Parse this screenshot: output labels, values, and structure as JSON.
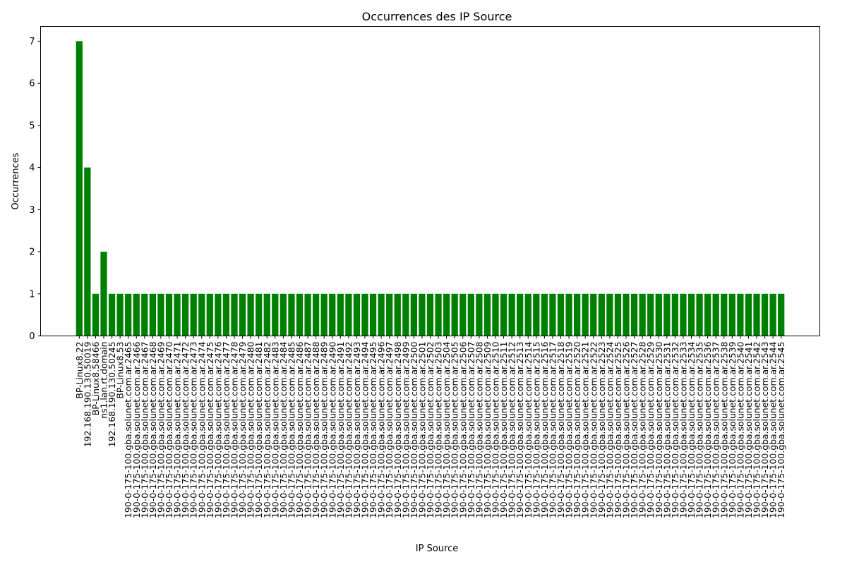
{
  "chart_data": {
    "type": "bar",
    "title": "Occurrences des IP Source",
    "xlabel": "IP Source",
    "ylabel": "Occurrences",
    "ylim": [
      0,
      7.35
    ],
    "yticks": [
      0,
      1,
      2,
      3,
      4,
      5,
      6,
      7
    ],
    "grid": false,
    "bar_color": "#008000",
    "categories": [
      "BP-Linux8.22",
      "192.168.190.130.50019",
      "BP-Linux8.58466",
      "ns1.lan.rt.domain",
      "192.168.190.130.50245",
      "BP-Linux8.53",
      "190-0-175-100.gba.solunet.com.ar.2465",
      "190-0-175-100.gba.solunet.com.ar.2466",
      "190-0-175-100.gba.solunet.com.ar.2467",
      "190-0-175-100.gba.solunet.com.ar.2468",
      "190-0-175-100.gba.solunet.com.ar.2469",
      "190-0-175-100.gba.solunet.com.ar.2470",
      "190-0-175-100.gba.solunet.com.ar.2471",
      "190-0-175-100.gba.solunet.com.ar.2472",
      "190-0-175-100.gba.solunet.com.ar.2473",
      "190-0-175-100.gba.solunet.com.ar.2474",
      "190-0-175-100.gba.solunet.com.ar.2475",
      "190-0-175-100.gba.solunet.com.ar.2476",
      "190-0-175-100.gba.solunet.com.ar.2477",
      "190-0-175-100.gba.solunet.com.ar.2478",
      "190-0-175-100.gba.solunet.com.ar.2479",
      "190-0-175-100.gba.solunet.com.ar.2480",
      "190-0-175-100.gba.solunet.com.ar.2481",
      "190-0-175-100.gba.solunet.com.ar.2482",
      "190-0-175-100.gba.solunet.com.ar.2483",
      "190-0-175-100.gba.solunet.com.ar.2484",
      "190-0-175-100.gba.solunet.com.ar.2485",
      "190-0-175-100.gba.solunet.com.ar.2486",
      "190-0-175-100.gba.solunet.com.ar.2487",
      "190-0-175-100.gba.solunet.com.ar.2488",
      "190-0-175-100.gba.solunet.com.ar.2489",
      "190-0-175-100.gba.solunet.com.ar.2490",
      "190-0-175-100.gba.solunet.com.ar.2491",
      "190-0-175-100.gba.solunet.com.ar.2492",
      "190-0-175-100.gba.solunet.com.ar.2493",
      "190-0-175-100.gba.solunet.com.ar.2494",
      "190-0-175-100.gba.solunet.com.ar.2495",
      "190-0-175-100.gba.solunet.com.ar.2496",
      "190-0-175-100.gba.solunet.com.ar.2497",
      "190-0-175-100.gba.solunet.com.ar.2498",
      "190-0-175-100.gba.solunet.com.ar.2499",
      "190-0-175-100.gba.solunet.com.ar.2500",
      "190-0-175-100.gba.solunet.com.ar.2501",
      "190-0-175-100.gba.solunet.com.ar.2502",
      "190-0-175-100.gba.solunet.com.ar.2503",
      "190-0-175-100.gba.solunet.com.ar.2504",
      "190-0-175-100.gba.solunet.com.ar.2505",
      "190-0-175-100.gba.solunet.com.ar.2506",
      "190-0-175-100.gba.solunet.com.ar.2507",
      "190-0-175-100.gba.solunet.com.ar.2508",
      "190-0-175-100.gba.solunet.com.ar.2509",
      "190-0-175-100.gba.solunet.com.ar.2510",
      "190-0-175-100.gba.solunet.com.ar.2511",
      "190-0-175-100.gba.solunet.com.ar.2512",
      "190-0-175-100.gba.solunet.com.ar.2513",
      "190-0-175-100.gba.solunet.com.ar.2514",
      "190-0-175-100.gba.solunet.com.ar.2515",
      "190-0-175-100.gba.solunet.com.ar.2516",
      "190-0-175-100.gba.solunet.com.ar.2517",
      "190-0-175-100.gba.solunet.com.ar.2518",
      "190-0-175-100.gba.solunet.com.ar.2519",
      "190-0-175-100.gba.solunet.com.ar.2520",
      "190-0-175-100.gba.solunet.com.ar.2521",
      "190-0-175-100.gba.solunet.com.ar.2522",
      "190-0-175-100.gba.solunet.com.ar.2523",
      "190-0-175-100.gba.solunet.com.ar.2524",
      "190-0-175-100.gba.solunet.com.ar.2525",
      "190-0-175-100.gba.solunet.com.ar.2526",
      "190-0-175-100.gba.solunet.com.ar.2527",
      "190-0-175-100.gba.solunet.com.ar.2528",
      "190-0-175-100.gba.solunet.com.ar.2529",
      "190-0-175-100.gba.solunet.com.ar.2530",
      "190-0-175-100.gba.solunet.com.ar.2531",
      "190-0-175-100.gba.solunet.com.ar.2532",
      "190-0-175-100.gba.solunet.com.ar.2533",
      "190-0-175-100.gba.solunet.com.ar.2534",
      "190-0-175-100.gba.solunet.com.ar.2535",
      "190-0-175-100.gba.solunet.com.ar.2536",
      "190-0-175-100.gba.solunet.com.ar.2537",
      "190-0-175-100.gba.solunet.com.ar.2538",
      "190-0-175-100.gba.solunet.com.ar.2539",
      "190-0-175-100.gba.solunet.com.ar.2540",
      "190-0-175-100.gba.solunet.com.ar.2541",
      "190-0-175-100.gba.solunet.com.ar.2542",
      "190-0-175-100.gba.solunet.com.ar.2543",
      "190-0-175-100.gba.solunet.com.ar.2544",
      "190-0-175-100.gba.solunet.com.ar.2545"
    ],
    "values": [
      7,
      4,
      1,
      2,
      1,
      1,
      1,
      1,
      1,
      1,
      1,
      1,
      1,
      1,
      1,
      1,
      1,
      1,
      1,
      1,
      1,
      1,
      1,
      1,
      1,
      1,
      1,
      1,
      1,
      1,
      1,
      1,
      1,
      1,
      1,
      1,
      1,
      1,
      1,
      1,
      1,
      1,
      1,
      1,
      1,
      1,
      1,
      1,
      1,
      1,
      1,
      1,
      1,
      1,
      1,
      1,
      1,
      1,
      1,
      1,
      1,
      1,
      1,
      1,
      1,
      1,
      1,
      1,
      1,
      1,
      1,
      1,
      1,
      1,
      1,
      1,
      1,
      1,
      1,
      1,
      1,
      1,
      1,
      1,
      1,
      1,
      1
    ]
  }
}
